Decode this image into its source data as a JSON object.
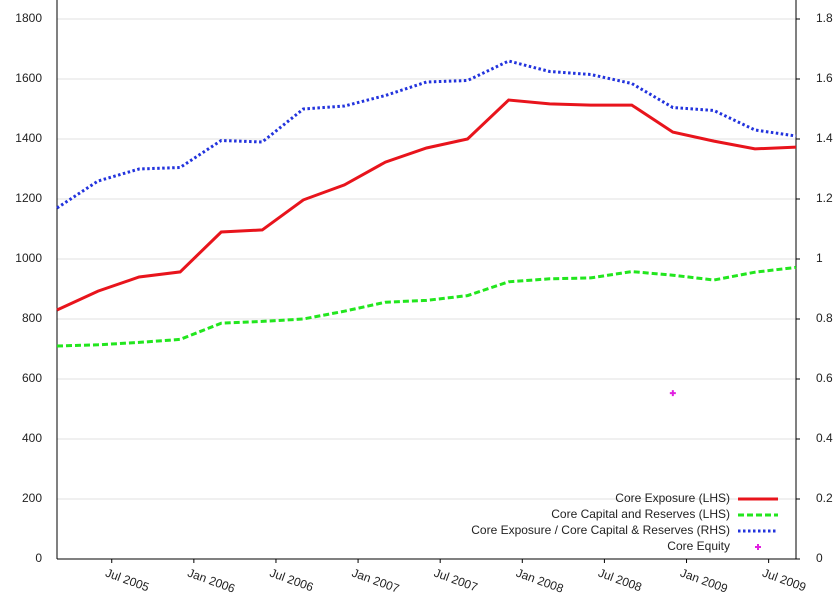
{
  "chart_data": {
    "type": "line",
    "x": [
      "2005-03",
      "2005-06",
      "2005-09",
      "2005-12",
      "2006-03",
      "2006-06",
      "2006-09",
      "2006-12",
      "2007-03",
      "2007-06",
      "2007-09",
      "2007-12",
      "2008-03",
      "2008-06",
      "2008-09",
      "2008-12",
      "2009-03",
      "2009-06",
      "2009-09"
    ],
    "xlim": [
      "2005-03",
      "2009-09"
    ],
    "xticks": [
      {
        "value": "2005-07",
        "label": "Jul 2005"
      },
      {
        "value": "2006-01",
        "label": "Jan 2006"
      },
      {
        "value": "2006-07",
        "label": "Jul 2006"
      },
      {
        "value": "2007-01",
        "label": "Jan 2007"
      },
      {
        "value": "2007-07",
        "label": "Jul 2007"
      },
      {
        "value": "2008-01",
        "label": "Jan 2008"
      },
      {
        "value": "2008-07",
        "label": "Jul 2008"
      },
      {
        "value": "2009-01",
        "label": "Jan 2009"
      },
      {
        "value": "2009-07",
        "label": "Jul 2009"
      }
    ],
    "ylim": [
      0,
      1800
    ],
    "yticks": [
      0,
      200,
      400,
      600,
      800,
      1000,
      1200,
      1400,
      1600,
      1800
    ],
    "y2lim": [
      0,
      1.8
    ],
    "y2ticks": [
      0,
      0.2,
      0.4,
      0.6,
      0.8,
      1,
      1.2,
      1.4,
      1.6,
      1.8
    ],
    "grid": true,
    "legend": "lower right",
    "series": [
      {
        "name": "Core Exposure (LHS)",
        "color": "#e8141c",
        "style": "solid",
        "values": [
          830,
          893,
          940,
          957,
          1090,
          1097,
          1197,
          1247,
          1323,
          1370,
          1400,
          1530,
          1517,
          1513,
          1513,
          1423,
          1393,
          1367,
          1373
        ]
      },
      {
        "name": "Core Capital and Reserves (LHS)",
        "color": "#22e61e",
        "style": "dashed",
        "values": [
          710,
          714,
          722,
          732,
          786,
          792,
          800,
          826,
          856,
          862,
          878,
          924,
          934,
          937,
          958,
          946,
          930,
          956,
          972
        ]
      },
      {
        "name": "Core Exposure / Core Capital & Reserves (RHS)",
        "color": "#2233dd",
        "style": "dotted",
        "axis": "y2",
        "values": [
          1.17,
          1.26,
          1.3,
          1.305,
          1.395,
          1.39,
          1.5,
          1.51,
          1.545,
          1.59,
          1.595,
          1.66,
          1.625,
          1.615,
          1.585,
          1.505,
          1.495,
          1.43,
          1.41
        ]
      },
      {
        "name": "Core Equity",
        "color": "#e020e0",
        "style": "marker",
        "values": [
          null,
          null,
          null,
          null,
          null,
          null,
          null,
          null,
          null,
          null,
          null,
          null,
          null,
          null,
          null,
          553,
          null,
          null,
          null
        ]
      }
    ]
  }
}
